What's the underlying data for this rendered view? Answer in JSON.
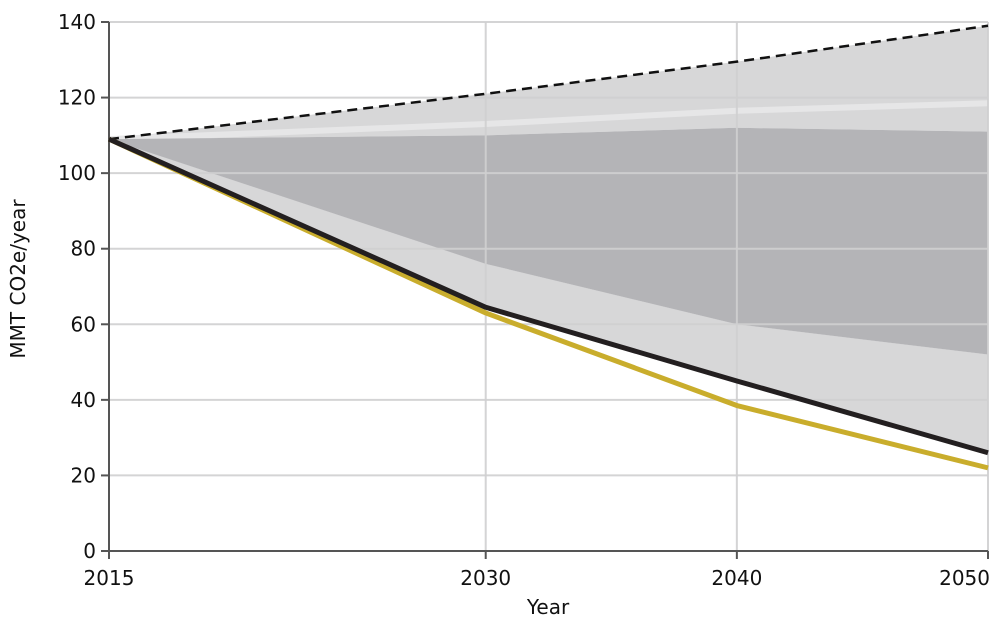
{
  "chart_data": {
    "type": "area",
    "title": "",
    "xlabel": "Year",
    "ylabel": "MMT CO2e/year",
    "xlim": [
      2015,
      2050
    ],
    "ylim": [
      0,
      140
    ],
    "x_ticks": [
      2015,
      2030,
      2040,
      2050
    ],
    "x_tick_labels": [
      "2015",
      "2030",
      "2040",
      "2050"
    ],
    "y_ticks": [
      0,
      20,
      40,
      60,
      80,
      100,
      120,
      140
    ],
    "y_tick_labels": [
      "0",
      "20",
      "40",
      "60",
      "80",
      "100",
      "120",
      "140"
    ],
    "grid": true,
    "legend": "none",
    "x": [
      2015,
      2030,
      2040,
      2050
    ],
    "bands": [
      {
        "lower": [
          109,
          110,
          112,
          111
        ],
        "upper": [
          109,
          121,
          129.5,
          139
        ],
        "color": "#d7d7d8"
      },
      {
        "lower": [
          109,
          113,
          116.5,
          118.5
        ],
        "upper": [
          109,
          113,
          116.5,
          118.5
        ],
        "color": "#e6e6e7"
      },
      {
        "lower": [
          109,
          64,
          45,
          26
        ],
        "upper": [
          109,
          76,
          60,
          52
        ],
        "color": "#d7d7d8"
      },
      {
        "lower": [
          109,
          64,
          45,
          26
        ],
        "upper": [
          109,
          76,
          60,
          52
        ],
        "color": "#d7d7d8"
      },
      {
        "lower": [
          109,
          76,
          60,
          52
        ],
        "upper": [
          109,
          110,
          112,
          111
        ],
        "color": "#b4b4b7"
      }
    ],
    "series": [
      {
        "values": [
          109,
          121,
          129.5,
          139
        ],
        "color": "#111111",
        "style": "dashed"
      },
      {
        "values": [
          109,
          63,
          38.5,
          22
        ],
        "color": "#c9ad2c",
        "style": "solid"
      },
      {
        "values": [
          109,
          64.5,
          45,
          26
        ],
        "color": "#231f20",
        "style": "solid"
      }
    ]
  }
}
